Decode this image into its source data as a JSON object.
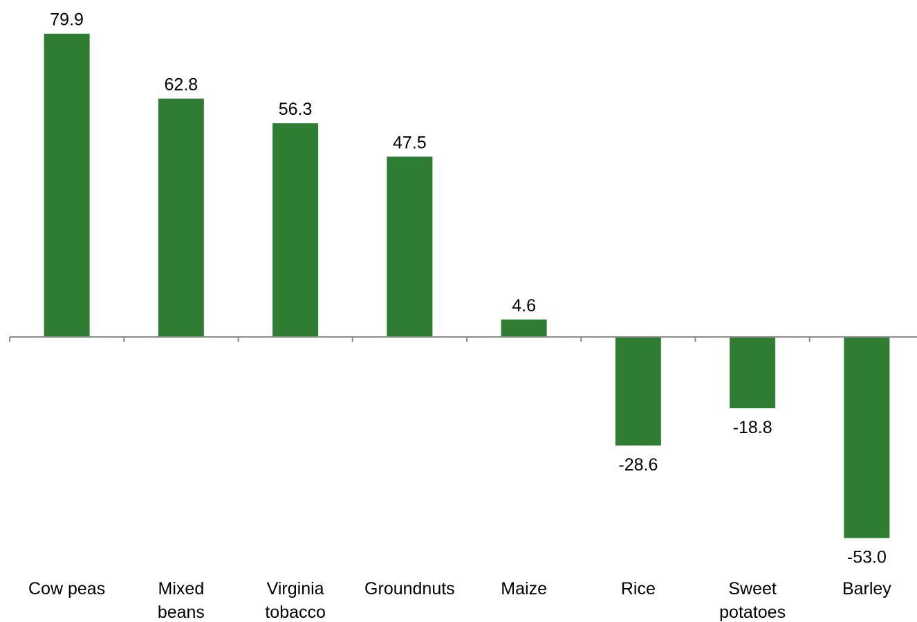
{
  "chart_data": {
    "type": "bar",
    "title": "",
    "xlabel": "",
    "ylabel": "",
    "categories": [
      [
        "Cow peas"
      ],
      [
        "Mixed",
        "beans"
      ],
      [
        "Virginia",
        "tobacco"
      ],
      [
        "Groundnuts"
      ],
      [
        "Maize"
      ],
      [
        "Rice"
      ],
      [
        "Sweet",
        "potatoes"
      ],
      [
        "Barley"
      ]
    ],
    "values": [
      79.9,
      62.8,
      56.3,
      47.5,
      4.6,
      -28.6,
      -18.8,
      -53.0
    ],
    "value_labels": [
      "79.9",
      "62.8",
      "56.3",
      "47.5",
      "4.6",
      "-28.6",
      "-18.8",
      "-53.0"
    ],
    "ylim": [
      -60,
      85
    ],
    "grid": false,
    "legend": "none",
    "bar_color": "#2e7d32",
    "axis_color": "#8c8c8c"
  }
}
